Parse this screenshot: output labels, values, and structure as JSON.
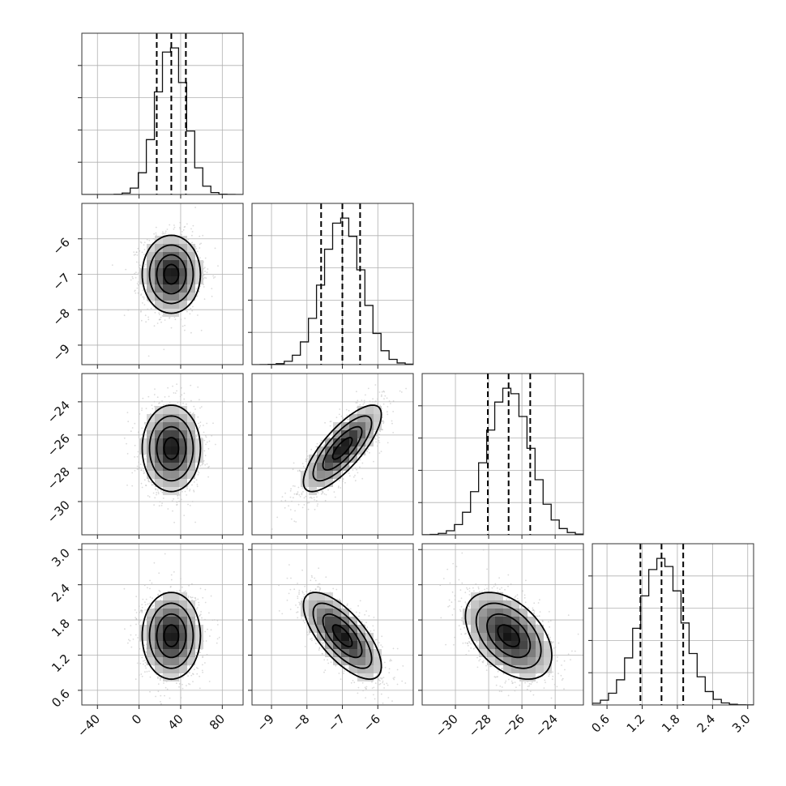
{
  "chart_data": {
    "type": "corner",
    "n_params": 4,
    "grid": true,
    "params": [
      {
        "range": [
          -55,
          100
        ],
        "ticks": [
          -40,
          0,
          40,
          80
        ],
        "tick_labels": [
          "−40",
          "0",
          "40",
          "80"
        ],
        "median": 31,
        "q16": 17,
        "q84": 45,
        "sd": 14
      },
      {
        "range": [
          -9.55,
          -5.0
        ],
        "ticks": [
          -9,
          -8,
          -7,
          -6
        ],
        "tick_labels": [
          "−9",
          "−8",
          "−7",
          "−6"
        ],
        "median": -7.0,
        "q16": -7.6,
        "q84": -6.5,
        "sd": 0.55
      },
      {
        "range": [
          -32.0,
          -22.3
        ],
        "ticks": [
          -30,
          -28,
          -26,
          -24
        ],
        "tick_labels": [
          "−30",
          "−28",
          "−26",
          "−24"
        ],
        "median": -26.8,
        "q16": -28.05,
        "q84": -25.5,
        "sd": 1.3
      },
      {
        "range": [
          0.35,
          3.1
        ],
        "ticks": [
          0.6,
          1.2,
          1.8,
          2.4,
          3.0
        ],
        "tick_labels": [
          "0.6",
          "1.2",
          "1.8",
          "2.4",
          "3.0"
        ],
        "median": 1.53,
        "q16": 1.17,
        "q84": 1.9,
        "sd": 0.37
      }
    ],
    "correlations": [
      [
        1.0,
        0.0,
        0.0,
        0.0
      ],
      [
        0.0,
        1.0,
        0.78,
        -0.7
      ],
      [
        0.0,
        0.78,
        1.0,
        -0.45
      ],
      [
        0.0,
        -0.7,
        -0.45,
        1.0
      ]
    ],
    "hist_bins": 20,
    "contour_levels": [
      0.5,
      1.0,
      1.5,
      2.0
    ],
    "colors": {
      "hist": "#111111",
      "contour": "#000000",
      "points": "#bbbbbb",
      "grid": "#b0b0b0"
    }
  }
}
